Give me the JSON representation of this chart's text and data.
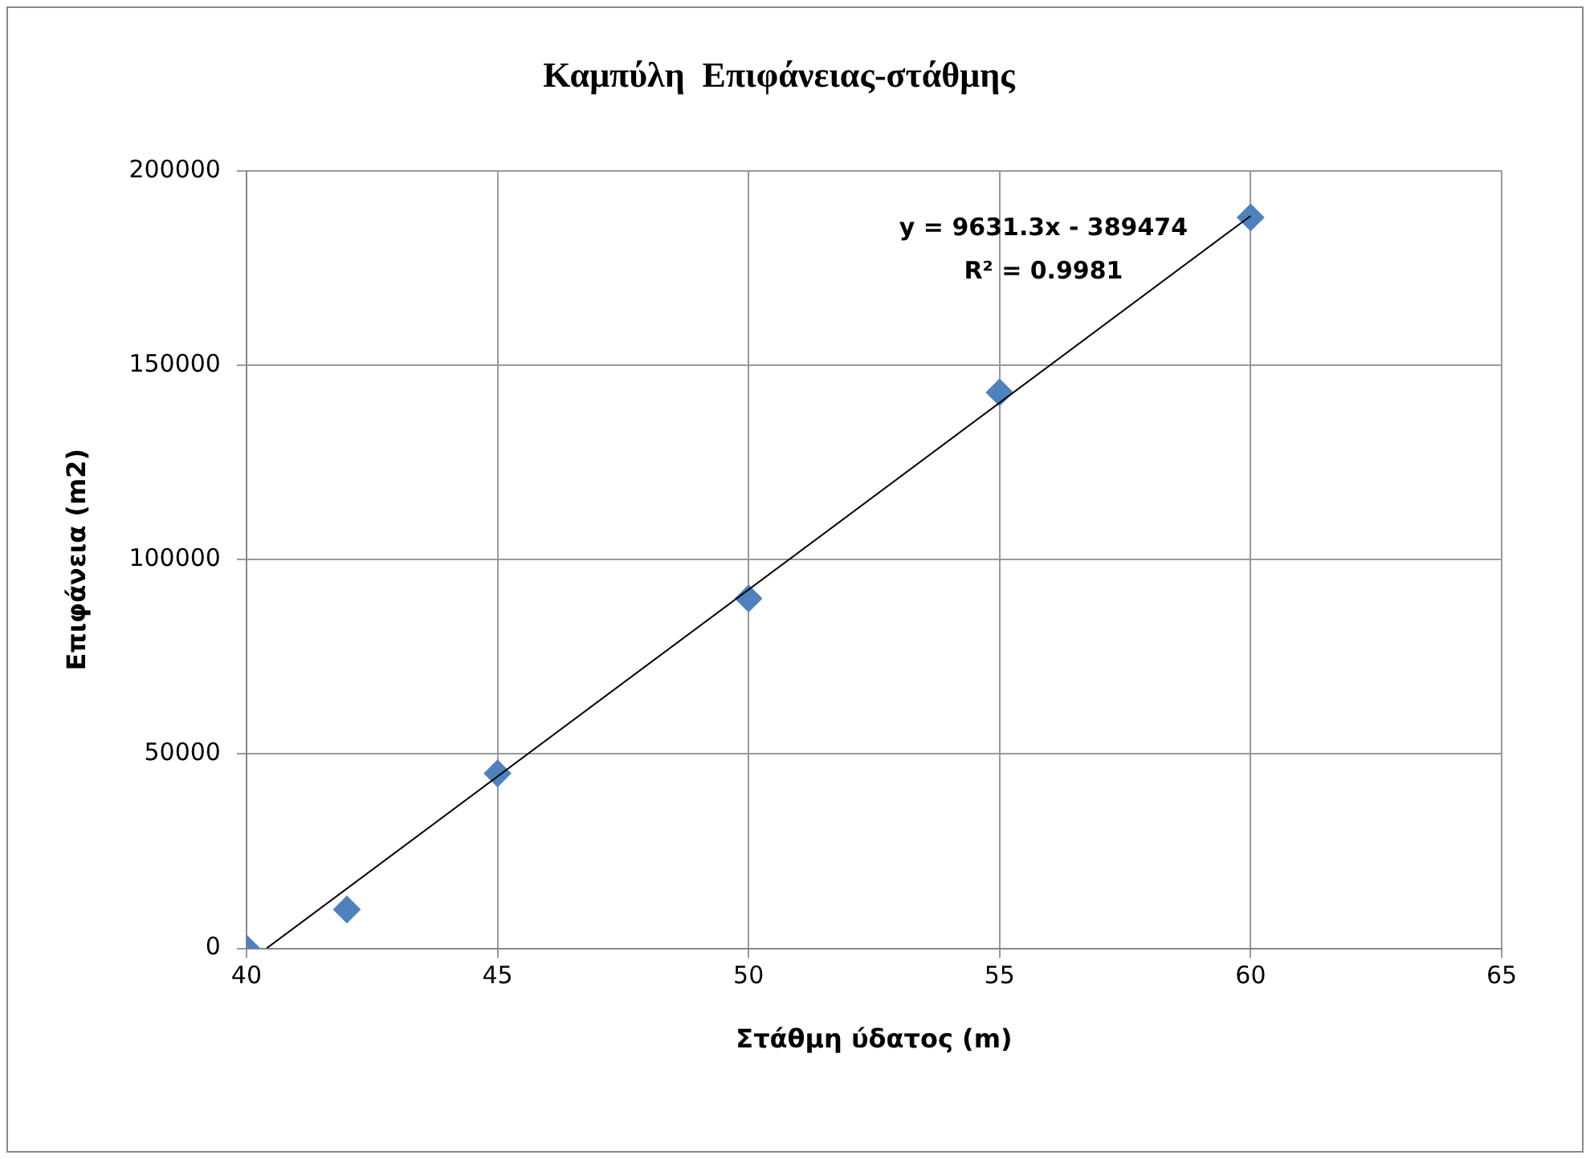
{
  "chart_data": {
    "type": "scatter",
    "title": "Καμπύλη  Επιφάνειας-στάθμης",
    "xlabel": "Στάθμη ύδατος (m)",
    "ylabel": "Επιφάνεια (m2)",
    "x": [
      40,
      42,
      45,
      50,
      55,
      60
    ],
    "series": [
      {
        "color": "#4f81bd",
        "marker": "diamond",
        "values": [
          0,
          10000,
          45000,
          90000,
          143000,
          188000
        ]
      },
      {
        "type": "line",
        "color": "#000000",
        "marker": "none",
        "x": [
          40.4,
          60
        ],
        "values": [
          0,
          188400
        ]
      }
    ],
    "annotations": [
      "y = 9631.3x - 389474",
      "R² = 0.9981"
    ],
    "xlim": [
      40,
      65
    ],
    "xticks": [
      40,
      45,
      50,
      55,
      60,
      65
    ],
    "ylim": [
      0,
      200000
    ],
    "yticks": [
      0,
      50000,
      100000,
      150000,
      200000
    ],
    "grid": true,
    "legend": false
  }
}
